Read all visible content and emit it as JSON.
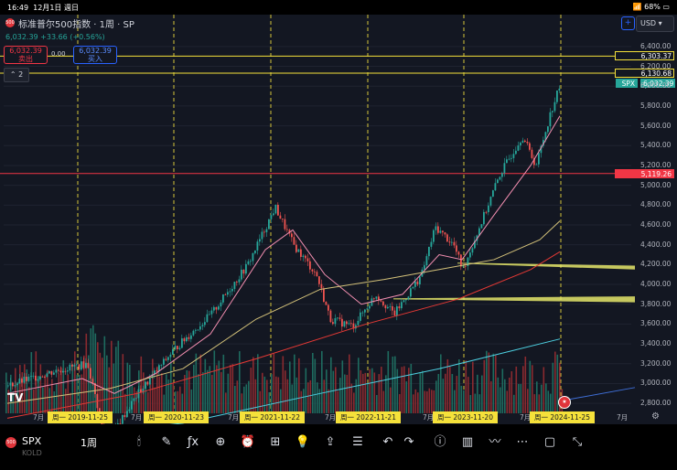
{
  "status_bar": {
    "time": "16:49",
    "date": "12月1日 週日",
    "battery": "68%"
  },
  "header": {
    "logo_text": "500",
    "title": "标准普尔500指数 · 1周 · SP",
    "price_line": "6,032.39 +33.66 (+0.56%)",
    "sell_price": "6,032.39",
    "sell_label": "卖出",
    "buy_price": "6,032.39",
    "buy_label": "买入",
    "spread": "0.00",
    "layers_count": "2",
    "currency": "USD"
  },
  "price_tags": [
    {
      "text": "6,303.37",
      "bg": "#131722",
      "color": "#ffffff",
      "border": "#f5e13a"
    },
    {
      "text": "6,130.68",
      "bg": "#131722",
      "color": "#ffffff",
      "border": "#f5e13a"
    },
    {
      "text": "SPX",
      "bg": "#26a69a",
      "color": "#ffffff",
      "border": "#26a69a"
    },
    {
      "text": "6,032.39",
      "bg": "#26a69a",
      "color": "#ffffff",
      "border": "#26a69a"
    },
    {
      "text": "5,119.26",
      "bg": "#f23645",
      "color": "#ffffff",
      "border": "#f23645"
    }
  ],
  "y_axis_labels": [
    "6,400.00",
    "6,200.00",
    "6,000.00",
    "5,800.00",
    "5,600.00",
    "5,400.00",
    "5,200.00",
    "5,000.00",
    "4,800.00",
    "4,600.00",
    "4,400.00",
    "4,200.00",
    "4,000.00",
    "3,800.00",
    "3,600.00",
    "3,400.00",
    "3,200.00",
    "3,000.00",
    "2,800.00"
  ],
  "x_axis_labels": [
    "7月",
    "7月",
    "7月",
    "7月",
    "7月",
    "7月",
    "7月"
  ],
  "x_date_tags": [
    "周一 2019-11-25",
    "周一 2020-11-23",
    "周一 2021-11-22",
    "周一 2022-11-21",
    "周一 2023-11-20",
    "周一 2024-11-25"
  ],
  "chart_data": {
    "type": "candlestick",
    "title": "标准普尔500指数 · 1周 · SP",
    "x": [
      "2019-07",
      "2019-11",
      "2020-03",
      "2020-07",
      "2020-11",
      "2021-03",
      "2021-07",
      "2021-11",
      "2022-01",
      "2022-06",
      "2022-10",
      "2023-02",
      "2023-07",
      "2023-10",
      "2024-03",
      "2024-07",
      "2024-11"
    ],
    "close": [
      3000,
      3150,
      2500,
      3250,
      3600,
      3950,
      4400,
      4700,
      4550,
      3700,
      3600,
      4100,
      4550,
      4150,
      5200,
      5500,
      6032
    ],
    "ylim": [
      2700,
      6500
    ],
    "horizontal_levels": [
      6303.37,
      6130.68,
      5119.26,
      4200,
      3850
    ]
  },
  "toolbar": {
    "logo_text": "500",
    "symbol": "SPX",
    "sub": "KOLD",
    "interval": "1周",
    "icons": [
      "candle-icon",
      "pen-icon",
      "formula-icon",
      "plus-circle-icon",
      "alarm-icon",
      "grid-icon",
      "bulb-icon",
      "share-icon",
      "notes-icon",
      "undo-icon",
      "redo-icon",
      "info-icon",
      "bars-icon",
      "trend-icon",
      "more-icon",
      "square-icon",
      "collapse-icon"
    ],
    "glyphs": [
      "🕯",
      "✎",
      "ƒx",
      "⊕",
      "⏰",
      "⊞",
      "💡",
      "⇪",
      "☰",
      "↶",
      "↷",
      "ⓘ",
      "▥",
      "〰",
      "⋯",
      "▢",
      "⤡"
    ]
  }
}
